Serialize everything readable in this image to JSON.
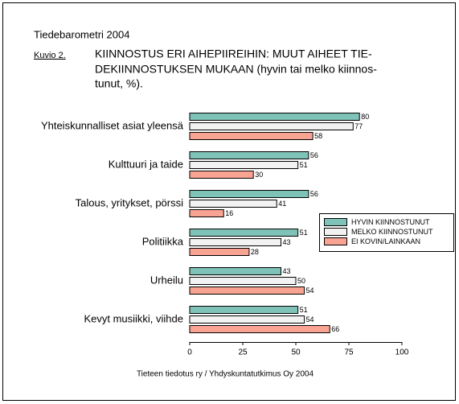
{
  "chart_data": {
    "type": "hbar",
    "subtitle": "Tiedebarometri 2004",
    "figure_label": "Kuvio 2.",
    "title": [
      "KIINNOSTUS ERI AIHEPIIREIHIN: MUUT AIHEET TIE-",
      "DEKIINNOSTUKSEN MUKAAN (hyvin tai melko kiinnos-",
      "tunut, %)."
    ],
    "source": "Tieteen tiedotus ry / Yhdyskuntatutkimus Oy 2004",
    "categories": [
      "Yhteiskunnalliset asiat yleensä",
      "Kulttuuri ja taide",
      "Talous, yritykset, pörssi",
      "Politiikka",
      "Urheilu",
      "Kevyt musiikki, viihde"
    ],
    "series": [
      {
        "name": "HYVIN KIINNOSTUNUT",
        "color": "#7fc2b8",
        "values": [
          80,
          56,
          56,
          51,
          43,
          51
        ]
      },
      {
        "name": "MELKO KIINNOSTUNUT",
        "color": "#f2f2f2",
        "values": [
          77,
          51,
          41,
          43,
          50,
          54
        ]
      },
      {
        "name": "EI KOVIN/LAINKAAN",
        "color": "#f9a393",
        "values": [
          58,
          30,
          16,
          28,
          54,
          66
        ]
      }
    ],
    "xlim": [
      0,
      100
    ],
    "xticks": [
      0,
      25,
      50,
      75,
      100
    ],
    "legend": "right"
  }
}
